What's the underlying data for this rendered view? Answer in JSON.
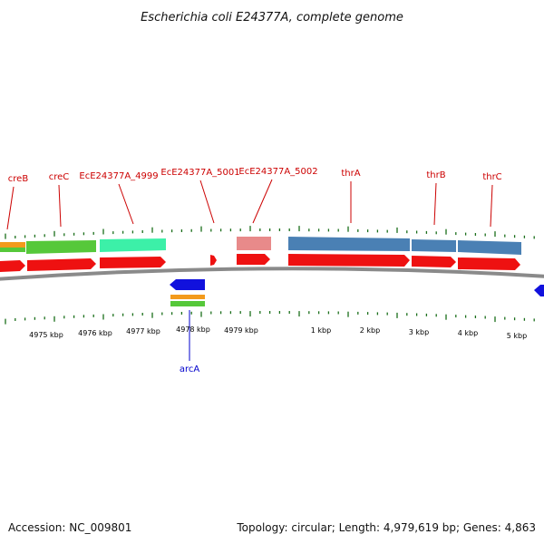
{
  "title": "Escherichia coli E24377A, complete genome",
  "accession_text": "Accession: NC_009801",
  "summary_text": "Topology: circular; Length: 4,979,619 bp; Genes: 4,863",
  "colors": {
    "plus_strand": "#ee1111",
    "minus_strand": "#1111dd",
    "backbone": "#8a8a8a",
    "tick": "#1a6e1a",
    "plus_label": "#cc0000",
    "minus_label": "#0000cc",
    "cog_orange": "#f39a1c",
    "cog_green": "#56c83a",
    "cog_teal": "#3cf0a8",
    "cog_pink": "#e88a8a",
    "cog_blue": "#4a80b4"
  },
  "plus_genes": [
    {
      "name": "creB"
    },
    {
      "name": "creC"
    },
    {
      "name": "EcE24377A_4999"
    },
    {
      "name": "EcE24377A_5001"
    },
    {
      "name": "EcE24377A_5002"
    },
    {
      "name": "thrA"
    },
    {
      "name": "thrB"
    },
    {
      "name": "thrC"
    }
  ],
  "minus_genes": [
    {
      "name": "arcA"
    }
  ],
  "scale_labels": [
    "4975 kbp",
    "4976 kbp",
    "4977 kbp",
    "4978 kbp",
    "4979 kbp",
    "1 kbp",
    "2 kbp",
    "3 kbp",
    "4 kbp",
    "5 kbp"
  ]
}
